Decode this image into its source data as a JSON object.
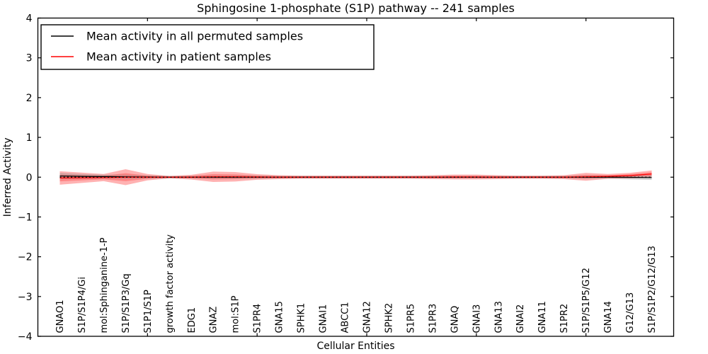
{
  "figure": {
    "title": "Sphingosine 1-phosphate (S1P) pathway -- 241 samples",
    "xlabel": "Cellular Entities",
    "ylabel": "Inferred Activity"
  },
  "legend": {
    "position": "upper-left",
    "entries": [
      {
        "label": "Mean activity in all permuted samples",
        "color": "#000000"
      },
      {
        "label": "Mean activity in patient samples",
        "color": "#ff0000"
      }
    ]
  },
  "colors": {
    "permuted_line": "#000000",
    "patient_line": "#ff0000",
    "zero_reference": "#000000",
    "patient_band": "rgba(255,0,0,0.30)",
    "patient_band_inner": "rgba(255,0,0,0.25)",
    "permuted_band": "rgba(130,130,130,0.35)",
    "axis": "#000000",
    "background": "#ffffff"
  },
  "chart_data": {
    "type": "line",
    "title": "Sphingosine 1-phosphate (S1P) pathway -- 241 samples",
    "xlabel": "Cellular Entities",
    "ylabel": "Inferred Activity",
    "ylim": [
      -4,
      4
    ],
    "xlim": [
      0,
      29
    ],
    "grid": false,
    "legend_position": "upper-left",
    "yticks": [
      4,
      3,
      2,
      1,
      0,
      -1,
      -2,
      -3,
      -4
    ],
    "ytick_labels": [
      "4",
      "3",
      "2",
      "1",
      "0",
      "−1",
      "−2",
      "−3",
      "−4"
    ],
    "xtick_positions": [
      5,
      10,
      15,
      20,
      25
    ],
    "categories": [
      "GNAO1",
      "S1P/S1P4/Gi",
      "mol:Sphinganine-1-P",
      "S1P/S1P3/Gq",
      "S1P1/S1P",
      "growth factor activity",
      "EDG1",
      "GNAZ",
      "mol:S1P",
      "S1PR4",
      "GNA15",
      "SPHK1",
      "GNAI1",
      "ABCC1",
      "GNA12",
      "SPHK2",
      "S1PR5",
      "S1PR3",
      "GNAQ",
      "GNAI3",
      "GNA13",
      "GNAI2",
      "GNA11",
      "S1PR2",
      "S1P/S1P5/G12",
      "GNA14",
      "G12/G13",
      "S1P/S1P2/G12/G13"
    ],
    "series": [
      {
        "name": "Mean activity in all permuted samples",
        "color": "#000000",
        "style": "solid",
        "values": [
          0.03,
          0.02,
          0.015,
          0.01,
          0.005,
          0,
          0,
          0,
          0,
          0,
          0,
          0,
          0,
          0,
          0,
          0,
          0,
          0,
          0,
          0,
          0,
          0,
          0,
          0,
          0,
          0,
          -0.005,
          -0.01
        ]
      },
      {
        "name": "Mean activity in patient samples",
        "color": "#ff0000",
        "style": "solid",
        "values": [
          -0.02,
          -0.015,
          -0.01,
          0,
          0,
          0,
          0,
          0.01,
          0.01,
          0.005,
          0,
          0,
          0,
          0,
          0,
          0,
          0,
          0,
          0.005,
          0.005,
          0,
          0,
          0,
          0,
          0.01,
          0.02,
          0.04,
          0.08
        ]
      },
      {
        "name": "zero reference",
        "color": "#000000",
        "style": "dotted",
        "values": [
          0,
          0,
          0,
          0,
          0,
          0,
          0,
          0,
          0,
          0,
          0,
          0,
          0,
          0,
          0,
          0,
          0,
          0,
          0,
          0,
          0,
          0,
          0,
          0,
          0,
          0,
          0,
          0
        ]
      }
    ],
    "bands": [
      {
        "name": "patient activity spread (outer)",
        "center_series": "Mean activity in patient samples",
        "color": "rgba(255,0,0,0.30)",
        "half_widths": [
          0.17,
          0.13,
          0.09,
          0.2,
          0.08,
          0.03,
          0.06,
          0.13,
          0.12,
          0.07,
          0.05,
          0.04,
          0.04,
          0.04,
          0.04,
          0.04,
          0.04,
          0.05,
          0.06,
          0.06,
          0.05,
          0.04,
          0.04,
          0.05,
          0.1,
          0.06,
          0.07,
          0.09
        ]
      },
      {
        "name": "patient activity spread (inner)",
        "center_series": "Mean activity in patient samples",
        "color": "rgba(255,0,0,0.25)",
        "half_width_scale_of_outer": 0.5
      },
      {
        "name": "permuted activity spread",
        "center_series": "Mean activity in all permuted samples",
        "color": "rgba(130,130,130,0.35)",
        "half_widths": [
          0.08,
          0.06,
          0.05,
          0.05,
          0.04,
          0.03,
          0.03,
          0.04,
          0.04,
          0.04,
          0.03,
          0.03,
          0.03,
          0.03,
          0.03,
          0.03,
          0.03,
          0.03,
          0.03,
          0.03,
          0.03,
          0.03,
          0.03,
          0.03,
          0.04,
          0.04,
          0.05,
          0.06
        ]
      }
    ]
  }
}
